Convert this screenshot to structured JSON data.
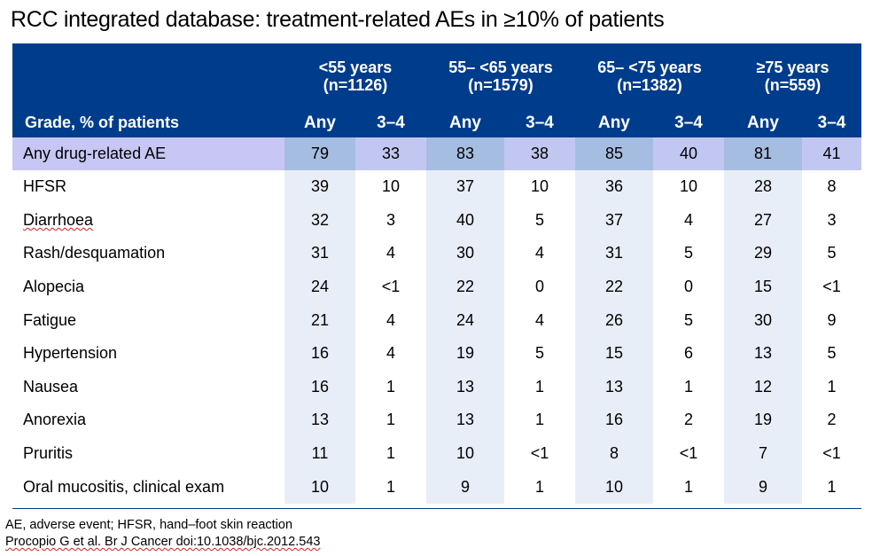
{
  "title": "RCC integrated database: treatment-related AEs in ≥10% of patients",
  "header": {
    "groups": [
      {
        "age": "<55 years",
        "n": "(n=1126)"
      },
      {
        "age": "55– <65 years",
        "n": "(n=1579)"
      },
      {
        "age": "65– <75 years",
        "n": "(n=1382)"
      },
      {
        "age": "≥75 years",
        "n": "(n=559)"
      }
    ],
    "row_label": "Grade, % of patients",
    "any": "Any",
    "grade34": "3–4"
  },
  "rows": [
    {
      "label": "Any drug-related AE",
      "values": [
        "79",
        "33",
        "83",
        "38",
        "85",
        "40",
        "81",
        "41"
      ]
    },
    {
      "label": "HFSR",
      "values": [
        "39",
        "10",
        "37",
        "10",
        "36",
        "10",
        "28",
        "8"
      ]
    },
    {
      "label": "Diarrhoea",
      "values": [
        "32",
        "3",
        "40",
        "5",
        "37",
        "4",
        "27",
        "3"
      ]
    },
    {
      "label": "Rash/desquamation",
      "values": [
        "31",
        "4",
        "30",
        "4",
        "31",
        "5",
        "29",
        "5"
      ]
    },
    {
      "label": "Alopecia",
      "values": [
        "24",
        "<1",
        "22",
        "0",
        "22",
        "0",
        "15",
        "<1"
      ]
    },
    {
      "label": "Fatigue",
      "values": [
        "21",
        "4",
        "24",
        "4",
        "26",
        "5",
        "30",
        "9"
      ]
    },
    {
      "label": "Hypertension",
      "values": [
        "16",
        "4",
        "19",
        "5",
        "15",
        "6",
        "13",
        "5"
      ]
    },
    {
      "label": "Nausea",
      "values": [
        "16",
        "1",
        "13",
        "1",
        "13",
        "1",
        "12",
        "1"
      ]
    },
    {
      "label": "Anorexia",
      "values": [
        "13",
        "1",
        "13",
        "1",
        "16",
        "2",
        "19",
        "2"
      ]
    },
    {
      "label": "Pruritis",
      "values": [
        "11",
        "1",
        "10",
        "<1",
        "8",
        "<1",
        "7",
        "<1"
      ]
    },
    {
      "label": "Oral mucositis, clinical exam",
      "values": [
        "10",
        "1",
        "9",
        "1",
        "10",
        "1",
        "9",
        "1"
      ]
    }
  ],
  "footnotes": {
    "line1": "AE, adverse event; HFSR, hand–foot skin reaction",
    "line2": "Procopio G et al. Br J Cancer doi:10.1038/bjc.2012.543"
  }
}
